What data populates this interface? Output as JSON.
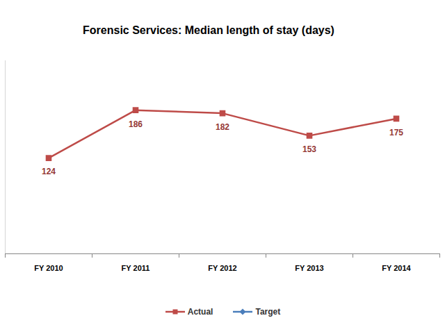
{
  "chart_data": {
    "type": "line",
    "title": "Forensic Services: Median length of stay (days)",
    "categories": [
      "FY 2010",
      "FY 2011",
      "FY 2012",
      "FY 2013",
      "FY 2014"
    ],
    "series": [
      {
        "name": "Actual",
        "color": "#be4b48",
        "marker": "square",
        "values": [
          124,
          186,
          182,
          153,
          175
        ]
      },
      {
        "name": "Target",
        "color": "#4a7ebb",
        "marker": "diamond",
        "values": [
          null,
          null,
          null,
          null,
          null
        ]
      }
    ],
    "ylim": [
      0,
      250
    ],
    "grid": false,
    "data_labels": true,
    "legend": "bottom",
    "tick_labels": "x"
  }
}
